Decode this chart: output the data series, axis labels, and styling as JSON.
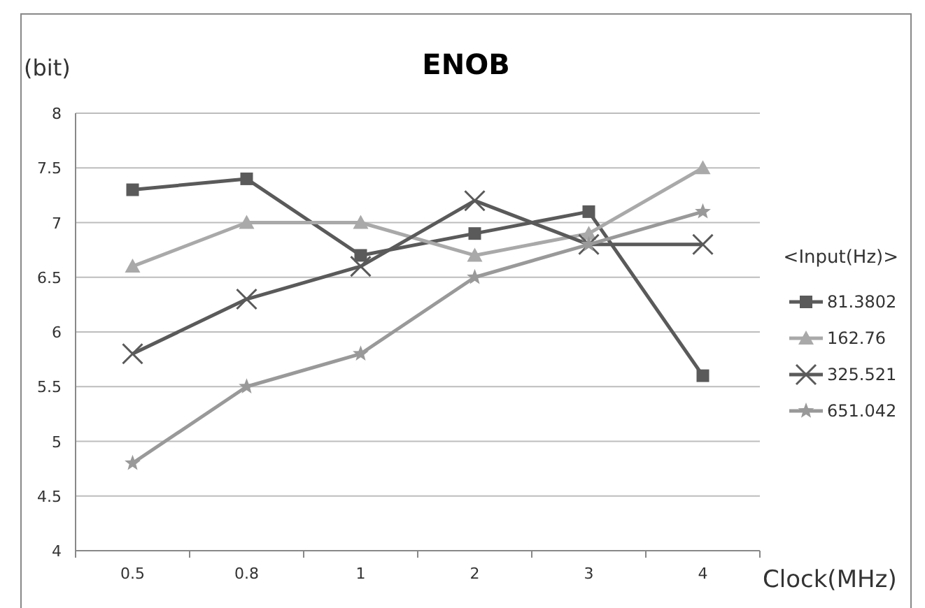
{
  "chart_data": {
    "type": "line",
    "title": "ENOB",
    "ylabel": "(bit)",
    "xlabel": "Clock(MHz)",
    "legend_title": "<Input(Hz)>",
    "categories": [
      "0.5",
      "0.8",
      "1",
      "2",
      "3",
      "4"
    ],
    "ylim": [
      4,
      8
    ],
    "yticks": [
      4,
      4.5,
      5,
      5.5,
      6,
      6.5,
      7,
      7.5,
      8
    ],
    "grid": "y",
    "legend": "right",
    "line_style": "solid",
    "series": [
      {
        "name": "81.3802",
        "color": "#5a5a5a",
        "marker": "square",
        "values": [
          7.3,
          7.4,
          6.7,
          6.9,
          7.1,
          5.6
        ]
      },
      {
        "name": "162.76",
        "color": "#a9a9a9",
        "marker": "triangle",
        "values": [
          6.6,
          7.0,
          7.0,
          6.7,
          6.9,
          7.5
        ]
      },
      {
        "name": "325.521",
        "color": "#5a5a5a",
        "marker": "cross",
        "values": [
          5.8,
          6.3,
          6.6,
          7.2,
          6.8,
          6.8
        ]
      },
      {
        "name": "651.042",
        "color": "#999999",
        "marker": "star",
        "values": [
          4.8,
          5.5,
          5.8,
          6.5,
          6.8,
          7.1
        ]
      }
    ]
  }
}
